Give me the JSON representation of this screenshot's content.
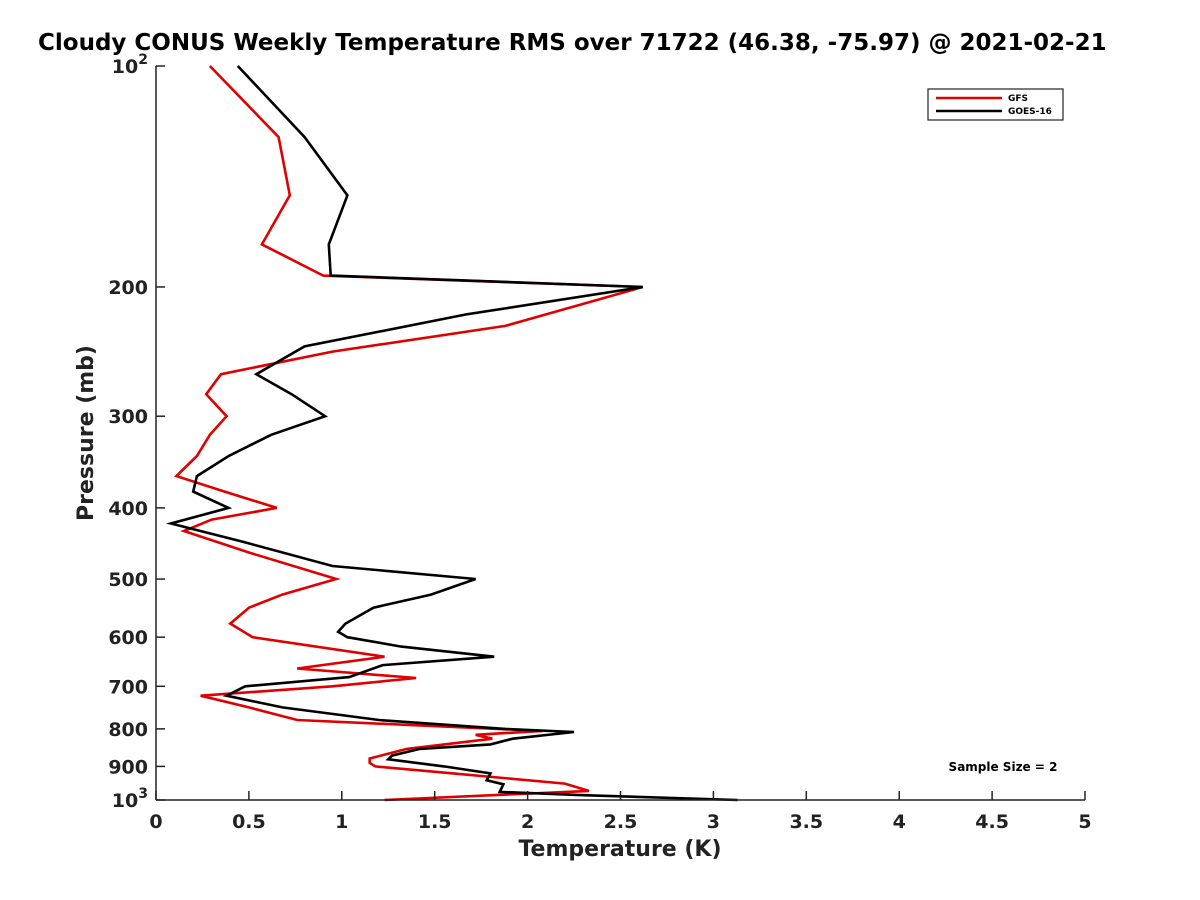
{
  "chart_data": {
    "type": "line",
    "title": "Cloudy CONUS Weekly Temperature RMS over 71722 (46.38, -75.97) @ 2021-02-21",
    "xlabel": "Temperature (K)",
    "ylabel": "Pressure (mb)",
    "xlim": [
      0,
      5
    ],
    "ylim": [
      100,
      1000
    ],
    "yscale": "log",
    "yreversed": true,
    "grid": false,
    "legend_position": "top-right",
    "x_ticks": [
      "0",
      "0.5",
      "1",
      "1.5",
      "2",
      "2.5",
      "3",
      "3.5",
      "4",
      "4.5",
      "5"
    ],
    "y_ticks": [
      {
        "value": 100,
        "label": "10",
        "sup": "2"
      },
      {
        "value": 200,
        "label": "200",
        "sup": ""
      },
      {
        "value": 300,
        "label": "300",
        "sup": ""
      },
      {
        "value": 400,
        "label": "400",
        "sup": ""
      },
      {
        "value": 500,
        "label": "500",
        "sup": ""
      },
      {
        "value": 600,
        "label": "600",
        "sup": ""
      },
      {
        "value": 700,
        "label": "700",
        "sup": ""
      },
      {
        "value": 800,
        "label": "800",
        "sup": ""
      },
      {
        "value": 900,
        "label": "900",
        "sup": ""
      },
      {
        "value": 1000,
        "label": "10",
        "sup": "3"
      }
    ],
    "annotation": "Sample Size = 2",
    "series": [
      {
        "name": "GFS",
        "color": "#e00000",
        "points": [
          [
            0.29,
            100
          ],
          [
            0.66,
            125
          ],
          [
            0.72,
            150
          ],
          [
            0.57,
            175
          ],
          [
            0.9,
            193
          ],
          [
            2.62,
            200
          ],
          [
            1.88,
            226
          ],
          [
            0.95,
            245
          ],
          [
            0.35,
            263
          ],
          [
            0.27,
            280
          ],
          [
            0.38,
            300
          ],
          [
            0.29,
            318
          ],
          [
            0.22,
            340
          ],
          [
            0.11,
            362
          ],
          [
            0.37,
            380
          ],
          [
            0.65,
            400
          ],
          [
            0.3,
            415
          ],
          [
            0.15,
            430
          ],
          [
            0.5,
            460
          ],
          [
            0.97,
            500
          ],
          [
            0.68,
            525
          ],
          [
            0.5,
            547
          ],
          [
            0.4,
            575
          ],
          [
            0.52,
            600
          ],
          [
            1.23,
            638
          ],
          [
            0.76,
            662
          ],
          [
            1.4,
            682
          ],
          [
            0.95,
            700
          ],
          [
            0.24,
            721
          ],
          [
            0.5,
            748
          ],
          [
            0.76,
            778
          ],
          [
            2.08,
            805
          ],
          [
            1.72,
            815
          ],
          [
            1.81,
            825
          ],
          [
            1.35,
            852
          ],
          [
            1.15,
            878
          ],
          [
            1.15,
            890
          ],
          [
            1.18,
            900
          ],
          [
            1.6,
            920
          ],
          [
            2.2,
            950
          ],
          [
            2.33,
            972
          ],
          [
            1.23,
            1000
          ]
        ]
      },
      {
        "name": "GOES-16",
        "color": "#000000",
        "points": [
          [
            0.44,
            100
          ],
          [
            0.8,
            125
          ],
          [
            1.03,
            150
          ],
          [
            0.93,
            175
          ],
          [
            0.94,
            193
          ],
          [
            2.62,
            200
          ],
          [
            1.67,
            218
          ],
          [
            0.8,
            241
          ],
          [
            0.54,
            263
          ],
          [
            0.73,
            280
          ],
          [
            0.91,
            300
          ],
          [
            0.62,
            318
          ],
          [
            0.39,
            340
          ],
          [
            0.22,
            362
          ],
          [
            0.2,
            380
          ],
          [
            0.39,
            400
          ],
          [
            0.08,
            420
          ],
          [
            0.47,
            445
          ],
          [
            0.95,
            480
          ],
          [
            1.72,
            500
          ],
          [
            1.48,
            525
          ],
          [
            1.17,
            547
          ],
          [
            1.02,
            575
          ],
          [
            0.98,
            590
          ],
          [
            1.03,
            600
          ],
          [
            1.32,
            618
          ],
          [
            1.82,
            638
          ],
          [
            1.22,
            655
          ],
          [
            1.04,
            680
          ],
          [
            0.48,
            700
          ],
          [
            0.38,
            721
          ],
          [
            0.68,
            748
          ],
          [
            1.2,
            778
          ],
          [
            1.88,
            800
          ],
          [
            2.25,
            808
          ],
          [
            1.92,
            825
          ],
          [
            1.8,
            840
          ],
          [
            1.42,
            852
          ],
          [
            1.27,
            870
          ],
          [
            1.25,
            880
          ],
          [
            1.55,
            900
          ],
          [
            1.8,
            920
          ],
          [
            1.78,
            940
          ],
          [
            1.87,
            952
          ],
          [
            1.85,
            975
          ],
          [
            2.3,
            985
          ],
          [
            3.13,
            1000
          ]
        ]
      }
    ]
  }
}
